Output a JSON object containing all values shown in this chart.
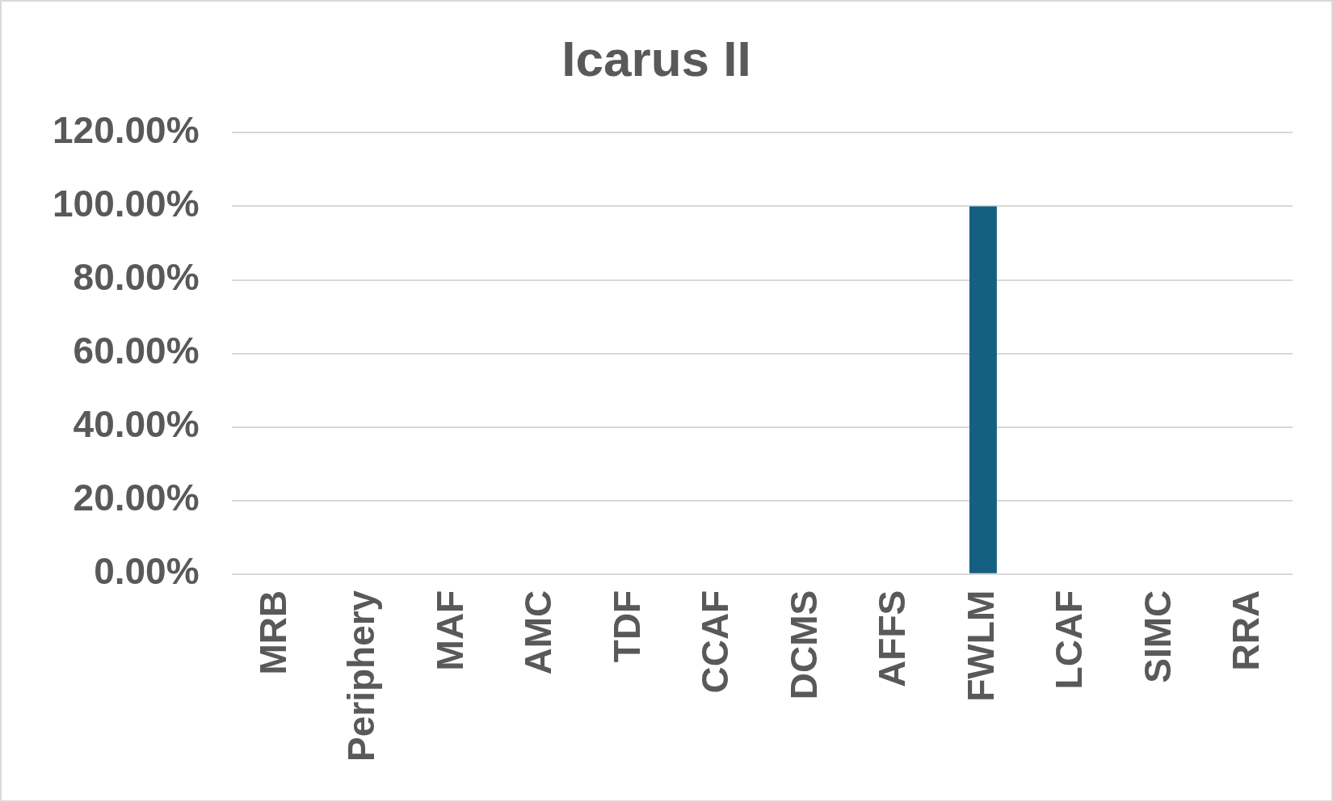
{
  "chart_data": {
    "type": "bar",
    "title": "Icarus II",
    "categories": [
      "MRB",
      "Periphery",
      "MAF",
      "AMC",
      "TDF",
      "CCAF",
      "DCMS",
      "AFFS",
      "FWLM",
      "LCAF",
      "SIMC",
      "RRA"
    ],
    "values": [
      0,
      0,
      0,
      0,
      0,
      0,
      0,
      0,
      100,
      0,
      0,
      0
    ],
    "color": "#156082",
    "ylim": [
      0,
      120
    ],
    "yticks": [
      {
        "value": 0,
        "label": "0.00%"
      },
      {
        "value": 20,
        "label": "20.00%"
      },
      {
        "value": 40,
        "label": "40.00%"
      },
      {
        "value": 60,
        "label": "60.00%"
      },
      {
        "value": 80,
        "label": "80.00%"
      },
      {
        "value": 100,
        "label": "100.00%"
      },
      {
        "value": 120,
        "label": "120.00%"
      }
    ],
    "grid": "y"
  }
}
